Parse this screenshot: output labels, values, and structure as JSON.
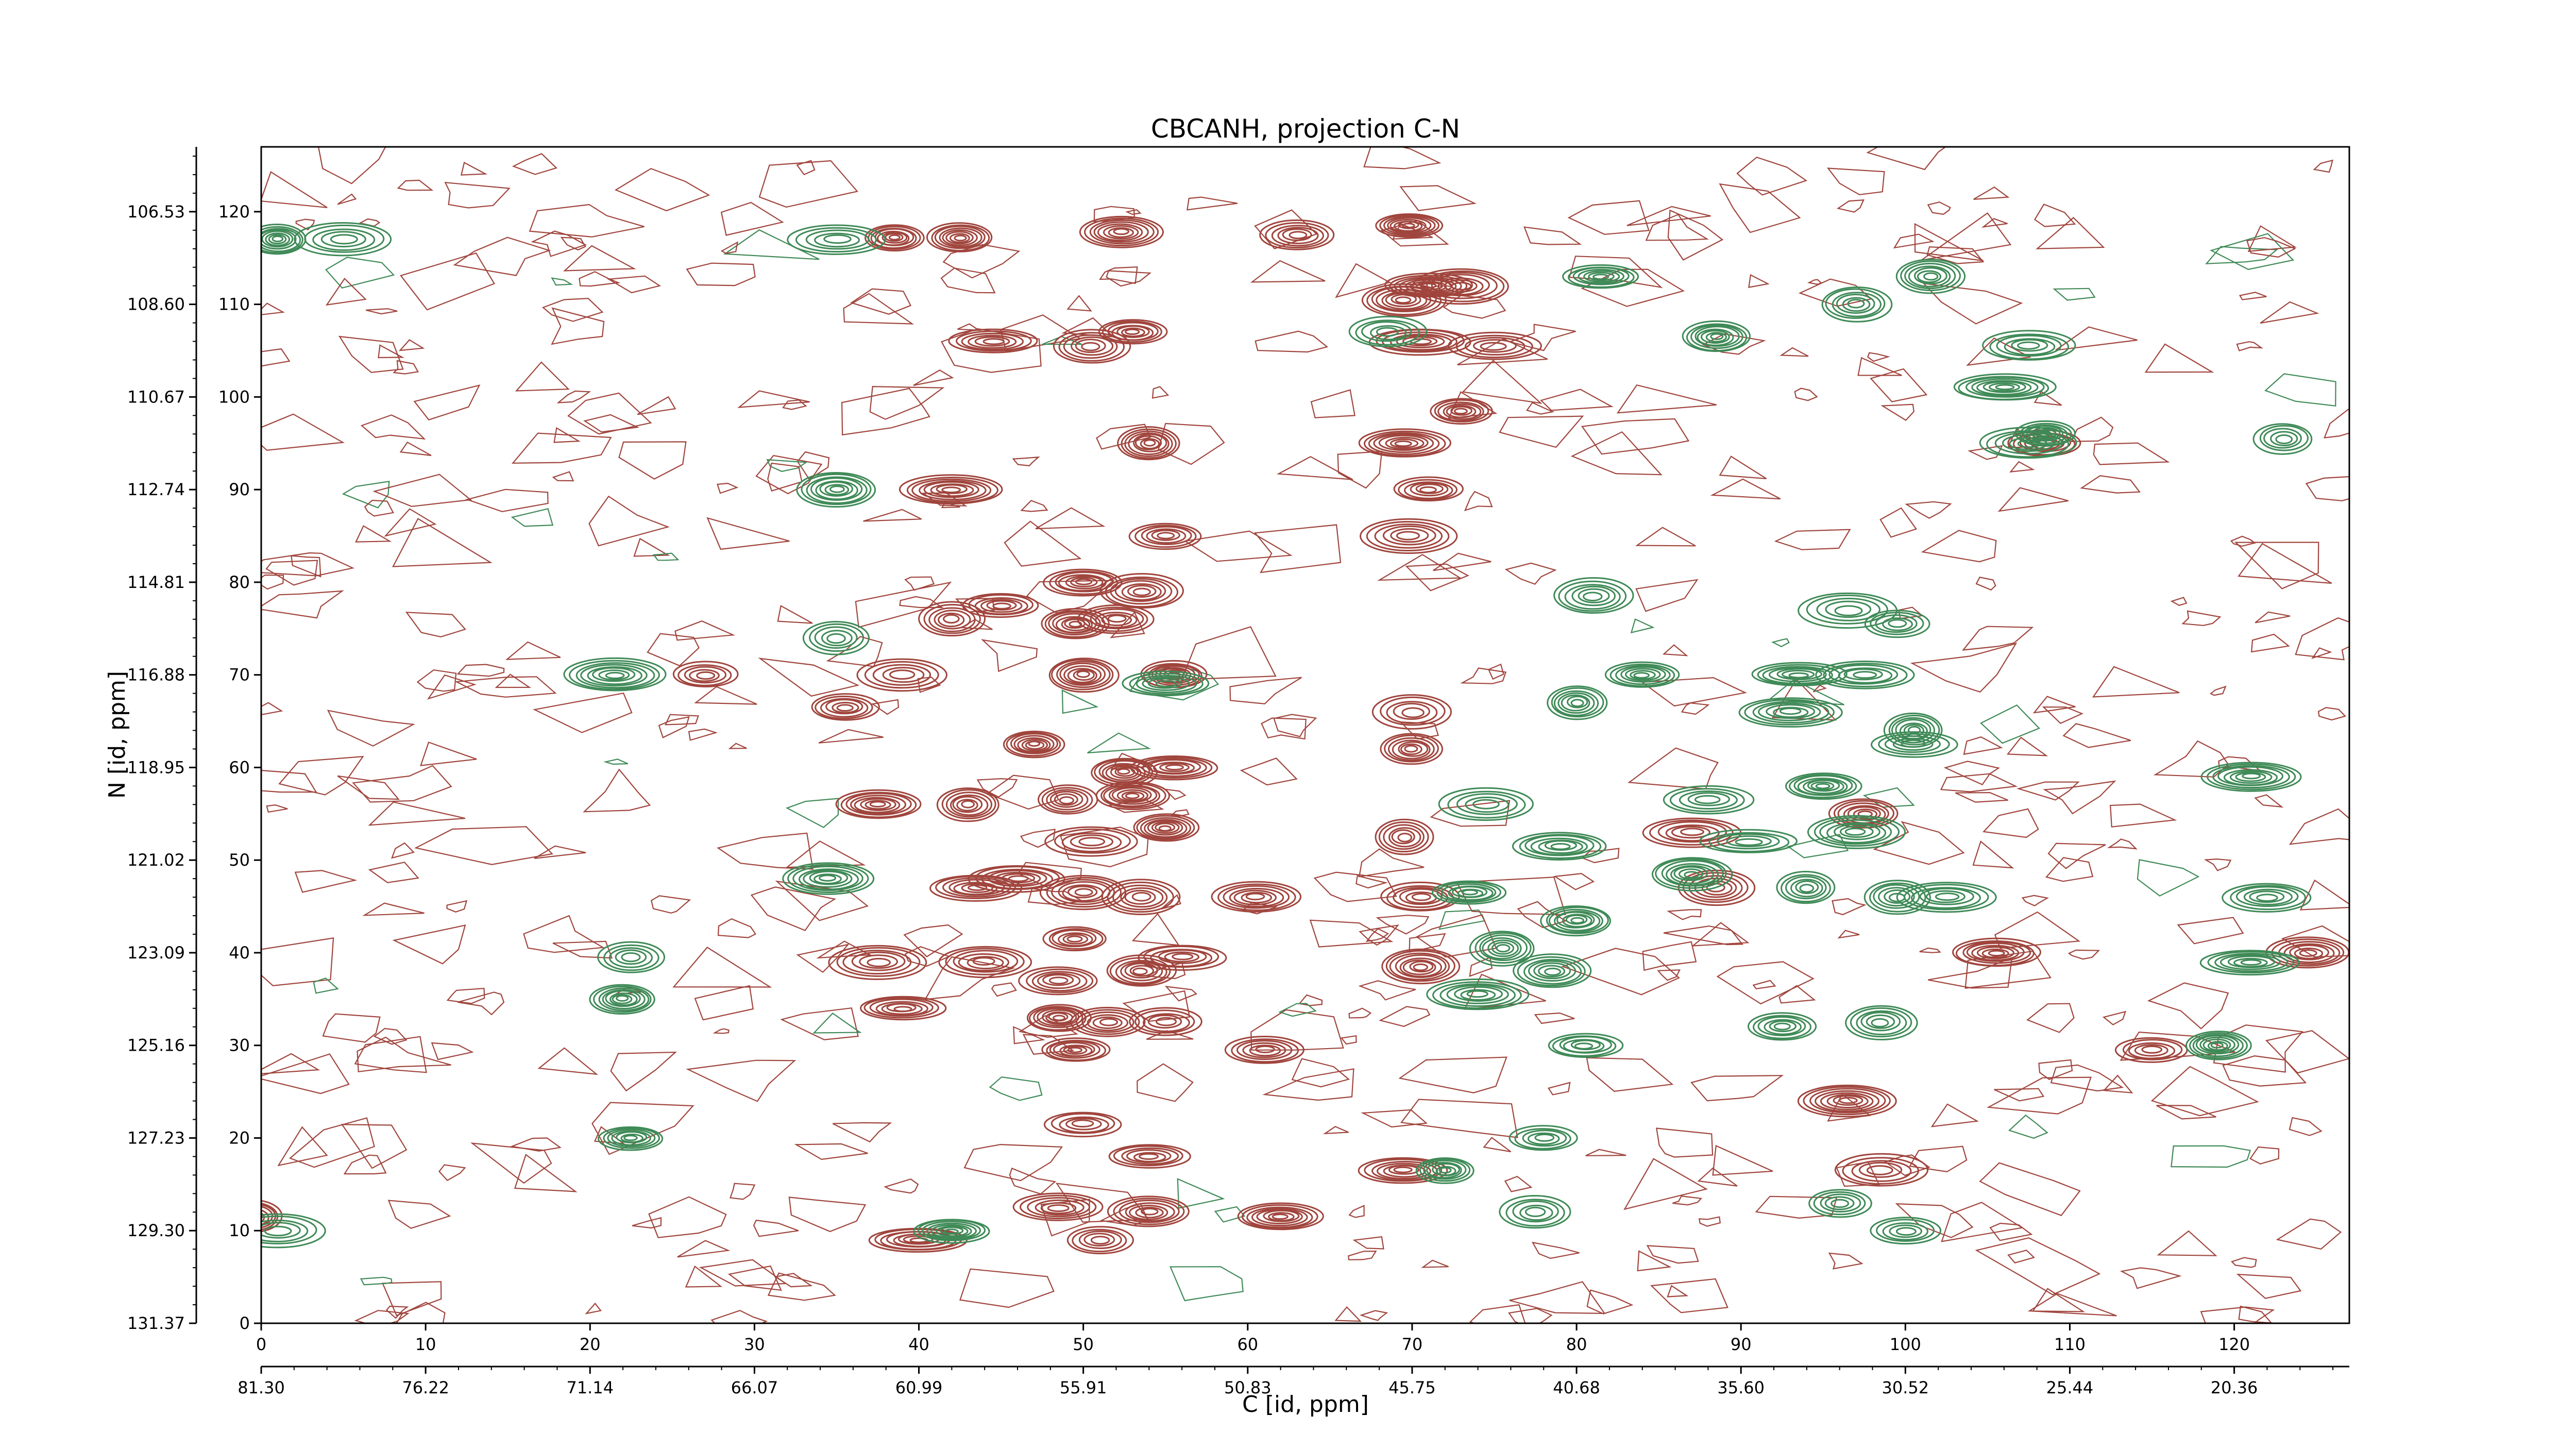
{
  "chart_data": {
    "type": "contour",
    "title": "CBCANH, projection C-N",
    "xlabel": "C [id, ppm]",
    "ylabel": "N [id, ppm]",
    "x_index_ticks": [
      0,
      10,
      20,
      30,
      40,
      50,
      60,
      70,
      80,
      90,
      100,
      110,
      120
    ],
    "y_index_ticks": [
      0,
      10,
      20,
      30,
      40,
      50,
      60,
      70,
      80,
      90,
      100,
      110,
      120
    ],
    "x_ppm_ticks": [
      "81.30",
      "76.22",
      "71.14",
      "66.07",
      "60.99",
      "55.91",
      "50.83",
      "45.75",
      "40.68",
      "35.60",
      "30.52",
      "25.44",
      "20.36"
    ],
    "y_ppm_ticks": [
      "131.37",
      "129.30",
      "127.23",
      "125.16",
      "123.09",
      "121.02",
      "118.95",
      "116.88",
      "114.81",
      "112.74",
      "110.67",
      "108.60",
      "106.53"
    ],
    "xlim_index": [
      0,
      127
    ],
    "ylim_index": [
      0,
      127
    ],
    "legend": "none",
    "grid": false,
    "colors": {
      "negative": "#a0453d",
      "positive": "#3f8a57"
    },
    "series": [
      {
        "sign": "negative",
        "color": "#a0453d",
        "peaks": [
          [
            69.8,
            118.5
          ],
          [
            52.3,
            117.8
          ],
          [
            42.5,
            117.2
          ],
          [
            38.5,
            117.2
          ],
          [
            63.0,
            117.5
          ],
          [
            71.0,
            112.0
          ],
          [
            69.5,
            110.5
          ],
          [
            73.0,
            112.0
          ],
          [
            70.5,
            106.0
          ],
          [
            44.5,
            106.0
          ],
          [
            53.0,
            107.0
          ],
          [
            50.5,
            105.5
          ],
          [
            75.0,
            105.5
          ],
          [
            73.0,
            98.5
          ],
          [
            69.5,
            95.0
          ],
          [
            54.0,
            95.0
          ],
          [
            71.0,
            90.0
          ],
          [
            42.0,
            90.0
          ],
          [
            69.8,
            85.0
          ],
          [
            55.0,
            85.0
          ],
          [
            50.0,
            80.0
          ],
          [
            53.5,
            79.0
          ],
          [
            45.0,
            77.5
          ],
          [
            42.0,
            76.0
          ],
          [
            49.5,
            75.5
          ],
          [
            52.0,
            76.0
          ],
          [
            50.0,
            70.0
          ],
          [
            39.0,
            70.0
          ],
          [
            55.5,
            70.0
          ],
          [
            27.0,
            70.0
          ],
          [
            35.5,
            66.5
          ],
          [
            70.0,
            66.0
          ],
          [
            47.0,
            62.5
          ],
          [
            70.0,
            62.0
          ],
          [
            55.5,
            60.0
          ],
          [
            52.5,
            59.5
          ],
          [
            49.0,
            56.5
          ],
          [
            53.0,
            57.0
          ],
          [
            37.5,
            56.0
          ],
          [
            43.0,
            56.0
          ],
          [
            50.5,
            52.0
          ],
          [
            55.0,
            53.5
          ],
          [
            69.5,
            52.5
          ],
          [
            46.0,
            48.0
          ],
          [
            43.5,
            47.0
          ],
          [
            50.0,
            46.5
          ],
          [
            53.5,
            46.0
          ],
          [
            60.5,
            46.0
          ],
          [
            70.5,
            46.0
          ],
          [
            49.5,
            41.5
          ],
          [
            56.0,
            39.5
          ],
          [
            44.0,
            39.0
          ],
          [
            37.5,
            39.0
          ],
          [
            48.5,
            37.0
          ],
          [
            70.5,
            38.5
          ],
          [
            53.5,
            38.0
          ],
          [
            39.0,
            34.0
          ],
          [
            48.5,
            33.0
          ],
          [
            55.0,
            32.5
          ],
          [
            51.5,
            32.5
          ],
          [
            49.5,
            29.5
          ],
          [
            61.0,
            29.5
          ],
          [
            50.0,
            21.5
          ],
          [
            54.0,
            18.0
          ],
          [
            69.5,
            16.5
          ],
          [
            48.5,
            12.5
          ],
          [
            54.0,
            12.0
          ],
          [
            40.0,
            9.0
          ],
          [
            51.0,
            9.0
          ],
          [
            62.0,
            11.5
          ],
          [
            -0.5,
            11.5
          ],
          [
            96.5,
            24.0
          ],
          [
            97.5,
            55.0
          ],
          [
            105.5,
            40.0
          ],
          [
            108.5,
            95.0
          ],
          [
            124.5,
            40.0
          ],
          [
            115.0,
            29.5
          ],
          [
            98.5,
            16.5
          ],
          [
            88.5,
            47.0
          ],
          [
            87.0,
            53.0
          ]
        ]
      },
      {
        "sign": "positive",
        "color": "#3f8a57",
        "peaks": [
          [
            35.0,
            117.0
          ],
          [
            1.0,
            117.0
          ],
          [
            81.5,
            113.0
          ],
          [
            88.5,
            106.5
          ],
          [
            101.5,
            113.0
          ],
          [
            107.5,
            105.5
          ],
          [
            106.0,
            101.0
          ],
          [
            107.5,
            95.0
          ],
          [
            123.0,
            95.5
          ],
          [
            35.0,
            90.0
          ],
          [
            81.0,
            78.5
          ],
          [
            96.5,
            77.0
          ],
          [
            99.5,
            75.5
          ],
          [
            35.0,
            74.0
          ],
          [
            21.5,
            70.0
          ],
          [
            80.0,
            67.0
          ],
          [
            84.0,
            70.0
          ],
          [
            93.0,
            66.0
          ],
          [
            93.5,
            70.0
          ],
          [
            97.5,
            70.0
          ],
          [
            100.5,
            64.0
          ],
          [
            100.5,
            62.5
          ],
          [
            95.0,
            58.0
          ],
          [
            121.0,
            59.0
          ],
          [
            88.0,
            56.5
          ],
          [
            74.5,
            56.0
          ],
          [
            97.0,
            53.0
          ],
          [
            90.5,
            52.0
          ],
          [
            79.0,
            51.5
          ],
          [
            34.5,
            48.0
          ],
          [
            87.0,
            48.5
          ],
          [
            94.0,
            47.0
          ],
          [
            99.5,
            46.0
          ],
          [
            102.5,
            46.0
          ],
          [
            73.5,
            46.5
          ],
          [
            80.0,
            43.5
          ],
          [
            75.5,
            40.5
          ],
          [
            78.5,
            38.0
          ],
          [
            122.0,
            46.0
          ],
          [
            22.5,
            39.5
          ],
          [
            22.0,
            35.0
          ],
          [
            121.0,
            39.0
          ],
          [
            74.0,
            35.5
          ],
          [
            92.5,
            32.0
          ],
          [
            98.5,
            32.5
          ],
          [
            80.5,
            30.0
          ],
          [
            119.0,
            30.0
          ],
          [
            22.5,
            20.0
          ],
          [
            78.0,
            20.0
          ],
          [
            72.0,
            16.5
          ],
          [
            77.5,
            12.0
          ],
          [
            96.0,
            13.0
          ],
          [
            100.0,
            10.0
          ],
          [
            1.0,
            10.0
          ],
          [
            42.0,
            10.0
          ],
          [
            5.0,
            117.0
          ],
          [
            108.5,
            96.0
          ],
          [
            97.0,
            110.0
          ],
          [
            55.0,
            69.0
          ],
          [
            68.5,
            107.0
          ]
        ]
      }
    ]
  }
}
